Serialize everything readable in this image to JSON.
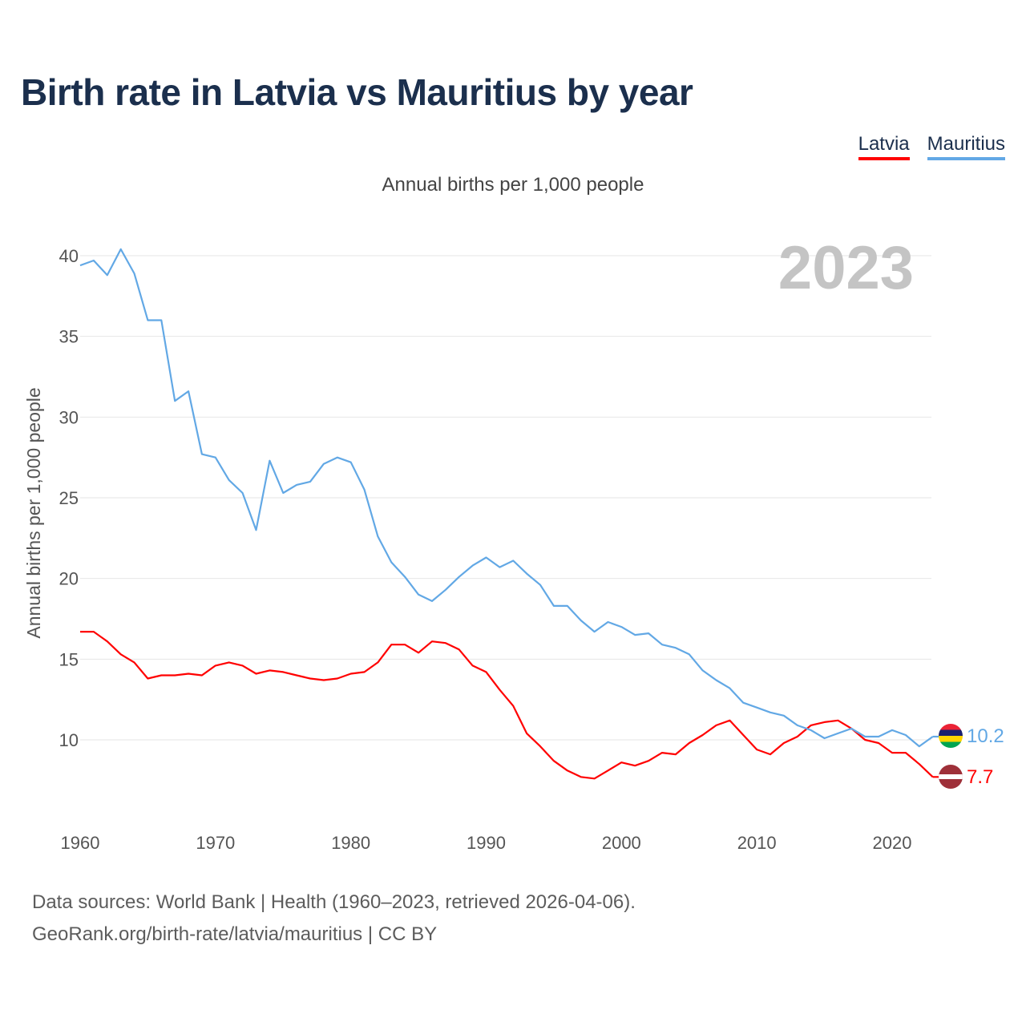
{
  "title": "Birth rate in Latvia vs Mauritius by year",
  "subtitle": "Annual births per 1,000 people",
  "legend": [
    {
      "label": "Latvia",
      "color": "#ff0000"
    },
    {
      "label": "Mauritius",
      "color": "#62a8e5"
    }
  ],
  "source": {
    "line1": "Data sources: World Bank | Health (1960–2023, retrieved 2026-04-06).",
    "line2": "GeoRank.org/birth-rate/latvia/mauritius | CC BY"
  },
  "chart_data": {
    "type": "line",
    "title": "Birth rate in Latvia vs Mauritius by year",
    "ylabel": "Annual births per 1,000 people",
    "xlabel": "",
    "year_label": "2023",
    "xlim": [
      1960,
      2023
    ],
    "ylim": [
      6,
      42
    ],
    "x_ticks": [
      1960,
      1970,
      1980,
      1990,
      2000,
      2010,
      2020
    ],
    "y_ticks": [
      10,
      15,
      20,
      25,
      30,
      35,
      40
    ],
    "grid": true,
    "x": [
      1960,
      1961,
      1962,
      1963,
      1964,
      1965,
      1966,
      1967,
      1968,
      1969,
      1970,
      1971,
      1972,
      1973,
      1974,
      1975,
      1976,
      1977,
      1978,
      1979,
      1980,
      1981,
      1982,
      1983,
      1984,
      1985,
      1986,
      1987,
      1988,
      1989,
      1990,
      1991,
      1992,
      1993,
      1994,
      1995,
      1996,
      1997,
      1998,
      1999,
      2000,
      2001,
      2002,
      2003,
      2004,
      2005,
      2006,
      2007,
      2008,
      2009,
      2010,
      2011,
      2012,
      2013,
      2014,
      2015,
      2016,
      2017,
      2018,
      2019,
      2020,
      2021,
      2022,
      2023
    ],
    "series": [
      {
        "name": "Latvia",
        "color": "#ff0000",
        "end_label": "7.7",
        "values": [
          16.7,
          16.7,
          16.1,
          15.3,
          14.8,
          13.8,
          14.0,
          14.0,
          14.1,
          14.0,
          14.6,
          14.8,
          14.6,
          14.1,
          14.3,
          14.2,
          14.0,
          13.8,
          13.7,
          13.8,
          14.1,
          14.2,
          14.8,
          15.9,
          15.9,
          15.4,
          16.1,
          16.0,
          15.6,
          14.6,
          14.2,
          13.1,
          12.1,
          10.4,
          9.6,
          8.7,
          8.1,
          7.7,
          7.6,
          8.1,
          8.6,
          8.4,
          8.7,
          9.2,
          9.1,
          9.8,
          10.3,
          10.9,
          11.2,
          10.3,
          9.4,
          9.1,
          9.8,
          10.2,
          10.9,
          11.1,
          11.2,
          10.7,
          10.0,
          9.8,
          9.2,
          9.2,
          8.5,
          7.7
        ]
      },
      {
        "name": "Mauritius",
        "color": "#62a8e5",
        "end_label": "10.2",
        "values": [
          39.4,
          39.7,
          38.8,
          40.4,
          38.9,
          36.0,
          36.0,
          31.0,
          31.6,
          27.7,
          27.5,
          26.1,
          25.3,
          23.0,
          27.3,
          25.3,
          25.8,
          26.0,
          27.1,
          27.5,
          27.2,
          25.5,
          22.6,
          21.0,
          20.1,
          19.0,
          18.6,
          19.3,
          20.1,
          20.8,
          21.3,
          20.7,
          21.1,
          20.3,
          19.6,
          18.3,
          18.3,
          17.4,
          16.7,
          17.3,
          17.0,
          16.5,
          16.6,
          15.9,
          15.7,
          15.3,
          14.3,
          13.7,
          13.2,
          12.3,
          12.0,
          11.7,
          11.5,
          10.9,
          10.6,
          10.1,
          10.4,
          10.7,
          10.2,
          10.2,
          10.6,
          10.3,
          9.6,
          10.2
        ]
      }
    ]
  }
}
